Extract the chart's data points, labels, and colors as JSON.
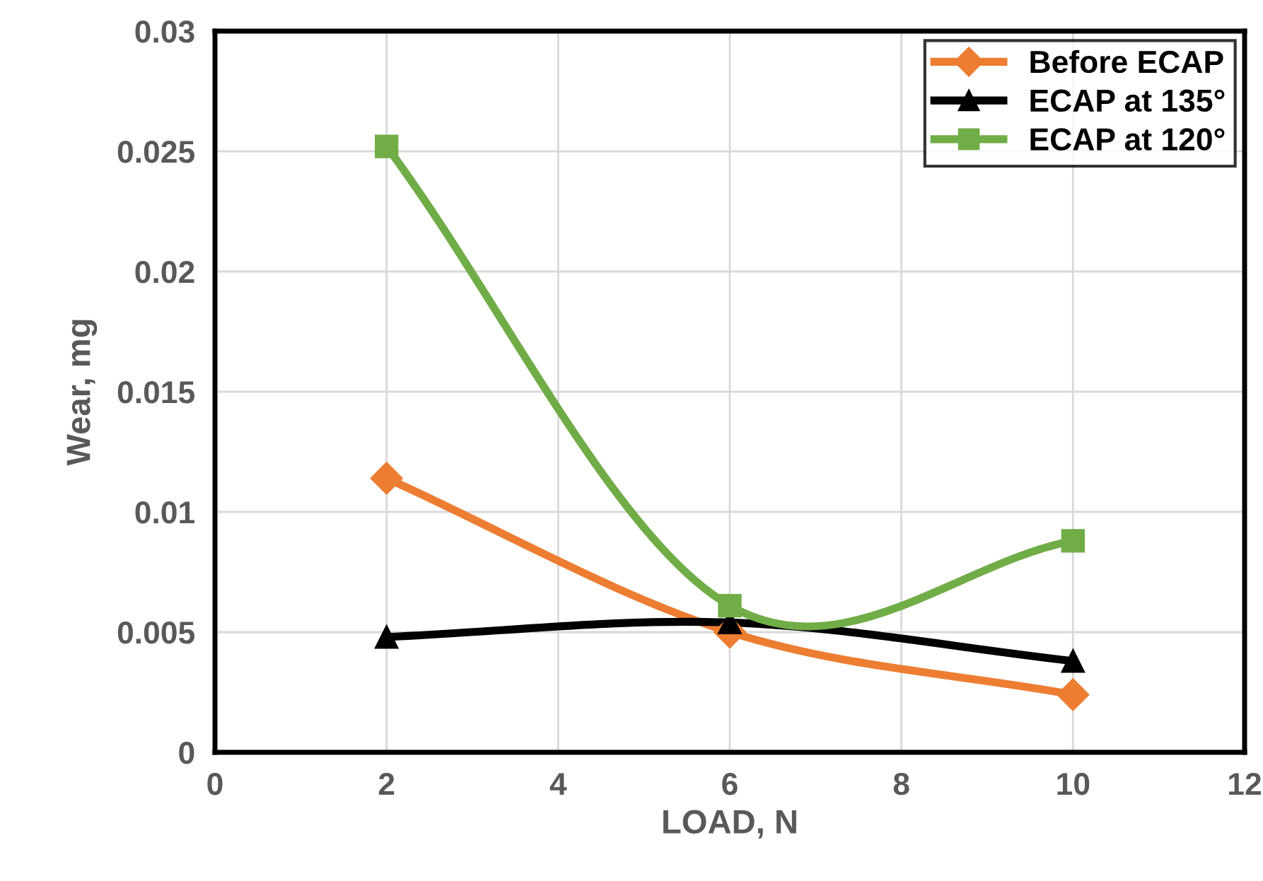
{
  "chart_data": {
    "type": "line",
    "xlabel": "LOAD, N",
    "ylabel": "Wear, mg",
    "x": [
      2,
      6,
      10
    ],
    "series": [
      {
        "name": "Before ECAP",
        "color": "#ed7d31",
        "marker": "diamond",
        "values": [
          0.0114,
          0.005,
          0.0024
        ]
      },
      {
        "name": "ECAP at 135°",
        "color": "#000000",
        "marker": "triangle",
        "values": [
          0.0048,
          0.0054,
          0.0038
        ]
      },
      {
        "name": "ECAP at 120°",
        "color": "#70ad47",
        "marker": "square",
        "values": [
          0.0252,
          0.0061,
          0.0088
        ]
      }
    ],
    "xlim": [
      0,
      12
    ],
    "xticks": [
      0,
      2,
      4,
      6,
      8,
      10,
      12
    ],
    "ylim": [
      0,
      0.03
    ],
    "yticks": [
      0,
      0.005,
      0.01,
      0.015,
      0.02,
      0.025,
      0.03
    ],
    "grid": true,
    "legend": "top right",
    "line_style": "solid"
  }
}
